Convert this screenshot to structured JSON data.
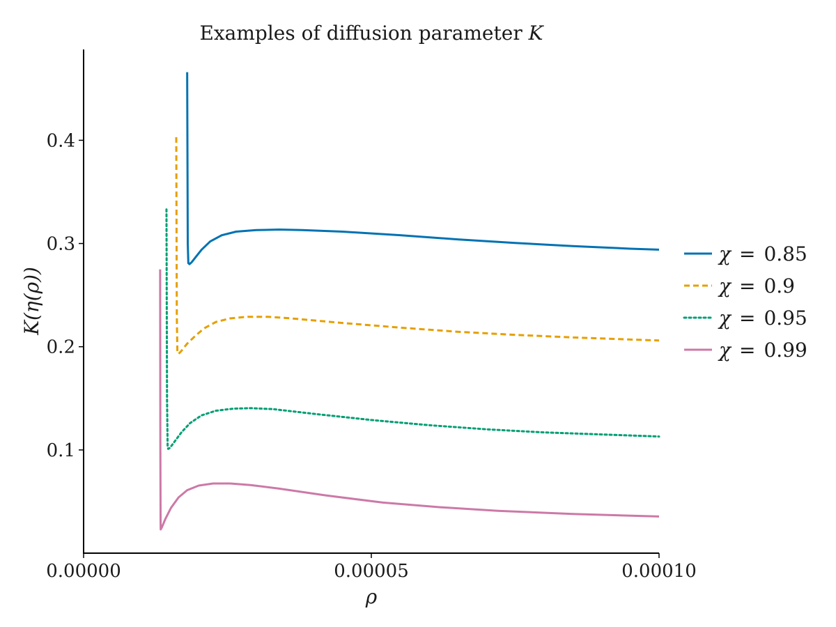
{
  "chart_data": {
    "type": "line",
    "title": "Examples of diffusion parameter K",
    "title_parts": {
      "prefix": "Examples of diffusion parameter ",
      "var": "K"
    },
    "xlabel": "ρ",
    "ylabel": "K(η(ρ))",
    "xlim": [
      0.0,
      0.0001
    ],
    "ylim": [
      0.0,
      0.488
    ],
    "x_ticks": [
      {
        "value": 0.0,
        "label": "0.00000"
      },
      {
        "value": 5e-05,
        "label": "0.00005"
      },
      {
        "value": 0.0001,
        "label": "0.00010"
      }
    ],
    "y_ticks": [
      {
        "value": 0.1,
        "label": "0.1"
      },
      {
        "value": 0.2,
        "label": "0.2"
      },
      {
        "value": 0.3,
        "label": "0.3"
      },
      {
        "value": 0.4,
        "label": "0.4"
      }
    ],
    "grid": false,
    "legend_position": "right",
    "series": [
      {
        "name": "χ = 0.85",
        "chi": "χ",
        "eq": "=",
        "val": "0.85",
        "color": "#0072b2",
        "dash": "solid",
        "x": [
          1.8e-05,
          1.81e-05,
          1.82e-05,
          1.84e-05,
          1.88e-05,
          1.95e-05,
          2.05e-05,
          2.2e-05,
          2.4e-05,
          2.65e-05,
          3e-05,
          3.4e-05,
          3.8e-05,
          4.5e-05,
          5.5e-05,
          6.5e-05,
          7.5e-05,
          8.5e-05,
          9.5e-05,
          0.0001
        ],
        "y": [
          0.466,
          0.3,
          0.281,
          0.28,
          0.282,
          0.287,
          0.294,
          0.302,
          0.308,
          0.3115,
          0.313,
          0.3135,
          0.313,
          0.3115,
          0.308,
          0.304,
          0.3005,
          0.2975,
          0.295,
          0.294
        ]
      },
      {
        "name": "χ = 0.9",
        "chi": "χ",
        "eq": "=",
        "val": "0.9",
        "color": "#e69f00",
        "dash": "dashed",
        "x": [
          1.61e-05,
          1.62e-05,
          1.63e-05,
          1.65e-05,
          1.7e-05,
          1.8e-05,
          1.95e-05,
          2.1e-05,
          2.3e-05,
          2.55e-05,
          2.85e-05,
          3.2e-05,
          3.6e-05,
          4.5e-05,
          5.5e-05,
          6.5e-05,
          7.5e-05,
          8.5e-05,
          9.5e-05,
          0.0001
        ],
        "y": [
          0.403,
          0.23,
          0.195,
          0.193,
          0.196,
          0.203,
          0.211,
          0.218,
          0.224,
          0.2275,
          0.229,
          0.229,
          0.2275,
          0.223,
          0.2185,
          0.2145,
          0.2115,
          0.209,
          0.207,
          0.206
        ]
      },
      {
        "name": "χ = 0.95",
        "chi": "χ",
        "eq": "=",
        "val": "0.95",
        "color": "#009e73",
        "dash": "dotted",
        "x": [
          1.44e-05,
          1.45e-05,
          1.46e-05,
          1.47e-05,
          1.5e-05,
          1.58e-05,
          1.7e-05,
          1.85e-05,
          2.05e-05,
          2.3e-05,
          2.6e-05,
          2.9e-05,
          3.3e-05,
          4e-05,
          5e-05,
          6e-05,
          7e-05,
          8e-05,
          9e-05,
          0.0001
        ],
        "y": [
          0.333,
          0.15,
          0.104,
          0.101,
          0.102,
          0.108,
          0.117,
          0.126,
          0.1335,
          0.138,
          0.14,
          0.1405,
          0.1395,
          0.135,
          0.129,
          0.124,
          0.12,
          0.117,
          0.115,
          0.113
        ]
      },
      {
        "name": "χ = 0.99",
        "chi": "χ",
        "eq": "=",
        "val": "0.99",
        "color": "#cc79a7",
        "dash": "solid",
        "x": [
          1.33e-05,
          1.334e-05,
          1.338e-05,
          1.34e-05,
          1.36e-05,
          1.42e-05,
          1.52e-05,
          1.65e-05,
          1.8e-05,
          2e-05,
          2.25e-05,
          2.55e-05,
          2.9e-05,
          3.4e-05,
          4.2e-05,
          5.2e-05,
          6.2e-05,
          7.2e-05,
          8.5e-05,
          0.0001
        ],
        "y": [
          0.275,
          0.1,
          0.03,
          0.023,
          0.025,
          0.033,
          0.044,
          0.054,
          0.061,
          0.0655,
          0.0675,
          0.0675,
          0.066,
          0.0625,
          0.056,
          0.049,
          0.0445,
          0.041,
          0.038,
          0.0355
        ]
      }
    ]
  }
}
